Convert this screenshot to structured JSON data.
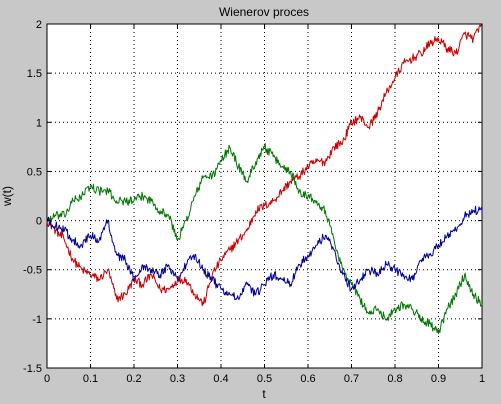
{
  "chart_data": {
    "type": "line",
    "title": "Wienerov proces",
    "xlabel": "t",
    "ylabel": "w(t)",
    "xlim": [
      0,
      1
    ],
    "ylim": [
      -1.5,
      2
    ],
    "xticks": [
      "0",
      "0.1",
      "0.2",
      "0.3",
      "0.4",
      "0.5",
      "0.6",
      "0.7",
      "0.8",
      "0.9",
      "1"
    ],
    "yticks": [
      "-1.5",
      "-1",
      "-0.5",
      "0",
      "0.5",
      "1",
      "1.5",
      "2"
    ],
    "grid": true,
    "grid_style": "dotted",
    "background": "#c8c8c8",
    "plot_background": "#ffffff",
    "series": [
      {
        "color": "#cc0000",
        "x": [
          0,
          0.02,
          0.04,
          0.06,
          0.08,
          0.1,
          0.12,
          0.14,
          0.16,
          0.18,
          0.2,
          0.22,
          0.24,
          0.26,
          0.28,
          0.3,
          0.32,
          0.34,
          0.36,
          0.38,
          0.4,
          0.42,
          0.44,
          0.46,
          0.48,
          0.5,
          0.52,
          0.54,
          0.56,
          0.58,
          0.6,
          0.62,
          0.64,
          0.66,
          0.68,
          0.7,
          0.72,
          0.74,
          0.76,
          0.78,
          0.8,
          0.82,
          0.84,
          0.86,
          0.88,
          0.9,
          0.92,
          0.94,
          0.96,
          0.98,
          1.0
        ],
        "y": [
          0,
          -0.1,
          -0.2,
          -0.4,
          -0.5,
          -0.55,
          -0.6,
          -0.5,
          -0.8,
          -0.75,
          -0.6,
          -0.65,
          -0.55,
          -0.7,
          -0.7,
          -0.6,
          -0.6,
          -0.75,
          -0.85,
          -0.55,
          -0.4,
          -0.3,
          -0.2,
          -0.1,
          0.1,
          0.15,
          0.2,
          0.3,
          0.4,
          0.45,
          0.55,
          0.6,
          0.6,
          0.75,
          0.8,
          1.0,
          1.05,
          0.95,
          1.1,
          1.3,
          1.45,
          1.6,
          1.65,
          1.7,
          1.8,
          1.85,
          1.75,
          1.7,
          1.9,
          1.85,
          2.0
        ]
      },
      {
        "color": "#007700",
        "x": [
          0,
          0.02,
          0.04,
          0.06,
          0.08,
          0.1,
          0.12,
          0.14,
          0.16,
          0.18,
          0.2,
          0.22,
          0.24,
          0.26,
          0.28,
          0.3,
          0.32,
          0.34,
          0.36,
          0.38,
          0.4,
          0.42,
          0.44,
          0.46,
          0.48,
          0.5,
          0.52,
          0.54,
          0.56,
          0.58,
          0.6,
          0.62,
          0.64,
          0.66,
          0.68,
          0.7,
          0.72,
          0.74,
          0.76,
          0.78,
          0.8,
          0.82,
          0.84,
          0.86,
          0.88,
          0.9,
          0.92,
          0.94,
          0.96,
          0.98,
          1.0
        ],
        "y": [
          0,
          0.05,
          0.05,
          0.2,
          0.25,
          0.35,
          0.3,
          0.3,
          0.2,
          0.2,
          0.2,
          0.25,
          0.2,
          0.1,
          0.05,
          -0.2,
          0.0,
          0.25,
          0.45,
          0.45,
          0.6,
          0.75,
          0.55,
          0.4,
          0.6,
          0.75,
          0.65,
          0.55,
          0.5,
          0.3,
          0.25,
          0.2,
          0.1,
          -0.2,
          -0.5,
          -0.65,
          -0.8,
          -0.95,
          -0.9,
          -1.0,
          -0.9,
          -0.85,
          -0.9,
          -1.0,
          -1.05,
          -1.15,
          -0.9,
          -0.75,
          -0.55,
          -0.75,
          -0.85
        ]
      },
      {
        "color": "#000099",
        "x": [
          0,
          0.02,
          0.04,
          0.06,
          0.08,
          0.1,
          0.12,
          0.14,
          0.16,
          0.18,
          0.2,
          0.22,
          0.24,
          0.26,
          0.28,
          0.3,
          0.32,
          0.34,
          0.36,
          0.38,
          0.4,
          0.42,
          0.44,
          0.46,
          0.48,
          0.5,
          0.52,
          0.54,
          0.56,
          0.58,
          0.6,
          0.62,
          0.64,
          0.66,
          0.68,
          0.7,
          0.72,
          0.74,
          0.76,
          0.78,
          0.8,
          0.82,
          0.84,
          0.86,
          0.88,
          0.9,
          0.92,
          0.94,
          0.96,
          0.98,
          1.0
        ],
        "y": [
          0,
          -0.05,
          -0.1,
          -0.2,
          -0.25,
          -0.15,
          -0.2,
          0.0,
          -0.35,
          -0.4,
          -0.6,
          -0.45,
          -0.5,
          -0.55,
          -0.45,
          -0.6,
          -0.45,
          -0.35,
          -0.5,
          -0.6,
          -0.7,
          -0.75,
          -0.8,
          -0.65,
          -0.75,
          -0.65,
          -0.55,
          -0.6,
          -0.65,
          -0.45,
          -0.35,
          -0.25,
          -0.15,
          -0.3,
          -0.55,
          -0.7,
          -0.6,
          -0.5,
          -0.55,
          -0.45,
          -0.5,
          -0.55,
          -0.6,
          -0.4,
          -0.35,
          -0.25,
          -0.15,
          -0.1,
          0.05,
          0.1,
          0.1
        ]
      }
    ]
  }
}
